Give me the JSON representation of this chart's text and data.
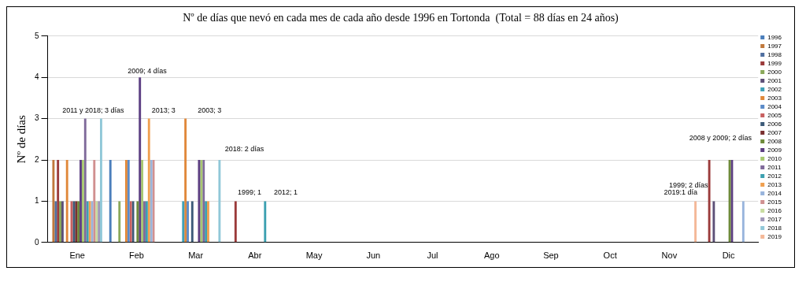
{
  "chart_data": {
    "type": "bar",
    "title": "Nº de días que nevó en cada mes de cada año desde 1996 en Tortonda  (Total = 88 días en 24 años)",
    "ylabel": "Nº de días",
    "categories": [
      "Ene",
      "Feb",
      "Mar",
      "Abr",
      "May",
      "Jun",
      "Jul",
      "Ago",
      "Sep",
      "Oct",
      "Nov",
      "Dic"
    ],
    "ylim": [
      0,
      5
    ],
    "yticks": [
      0,
      1,
      2,
      3,
      4,
      5
    ],
    "grid": "y",
    "legend": "right",
    "series": [
      {
        "name": "1996",
        "color": "#4a7ebb",
        "values": [
          0,
          2,
          0,
          0,
          0,
          0,
          0,
          0,
          0,
          0,
          0,
          0
        ]
      },
      {
        "name": "1997",
        "color": "#c0783c",
        "values": [
          2,
          0,
          0,
          0,
          0,
          0,
          0,
          0,
          0,
          0,
          0,
          0
        ]
      },
      {
        "name": "1998",
        "color": "#4f6fa0",
        "values": [
          1,
          0,
          0,
          0,
          0,
          0,
          0,
          0,
          0,
          0,
          0,
          0
        ]
      },
      {
        "name": "1999",
        "color": "#9b3b3b",
        "values": [
          2,
          0,
          0,
          1,
          0,
          0,
          0,
          0,
          0,
          0,
          0,
          2
        ]
      },
      {
        "name": "2000",
        "color": "#8aa85a",
        "values": [
          1,
          1,
          0,
          0,
          0,
          0,
          0,
          0,
          0,
          0,
          0,
          0
        ]
      },
      {
        "name": "2001",
        "color": "#5d5077",
        "values": [
          1,
          0,
          0,
          0,
          0,
          0,
          0,
          0,
          0,
          0,
          0,
          1
        ]
      },
      {
        "name": "2002",
        "color": "#3fa0b8",
        "values": [
          0,
          0,
          1,
          0,
          0,
          0,
          0,
          0,
          0,
          0,
          0,
          0
        ]
      },
      {
        "name": "2003",
        "color": "#e0883a",
        "values": [
          2,
          2,
          3,
          0,
          0,
          0,
          0,
          0,
          0,
          0,
          0,
          0
        ]
      },
      {
        "name": "2004",
        "color": "#5a8ac8",
        "values": [
          0,
          2,
          1,
          0,
          0,
          0,
          0,
          0,
          0,
          0,
          0,
          0
        ]
      },
      {
        "name": "2005",
        "color": "#c86060",
        "values": [
          1,
          1,
          0,
          0,
          0,
          0,
          0,
          0,
          0,
          0,
          0,
          0
        ]
      },
      {
        "name": "2006",
        "color": "#3c5a78",
        "values": [
          1,
          1,
          1,
          0,
          0,
          0,
          0,
          0,
          0,
          0,
          0,
          0
        ]
      },
      {
        "name": "2007",
        "color": "#7a3030",
        "values": [
          1,
          0,
          0,
          0,
          0,
          0,
          0,
          0,
          0,
          0,
          0,
          0
        ]
      },
      {
        "name": "2008",
        "color": "#6e8a3a",
        "values": [
          1,
          1,
          0,
          0,
          0,
          0,
          0,
          0,
          0,
          0,
          0,
          2
        ]
      },
      {
        "name": "2009",
        "color": "#5c3e82",
        "values": [
          2,
          4,
          2,
          0,
          0,
          0,
          0,
          0,
          0,
          0,
          0,
          2
        ]
      },
      {
        "name": "2010",
        "color": "#a8c870",
        "values": [
          2,
          2,
          2,
          0,
          0,
          0,
          0,
          0,
          0,
          0,
          0,
          0
        ]
      },
      {
        "name": "2011",
        "color": "#7f6a9a",
        "values": [
          3,
          1,
          2,
          0,
          0,
          0,
          0,
          0,
          0,
          0,
          0,
          0
        ]
      },
      {
        "name": "2012",
        "color": "#3ca0b0",
        "values": [
          1,
          1,
          1,
          1,
          0,
          0,
          0,
          0,
          0,
          0,
          0,
          0
        ]
      },
      {
        "name": "2013",
        "color": "#f0a050",
        "values": [
          1,
          3,
          1,
          0,
          0,
          0,
          0,
          0,
          0,
          0,
          0,
          0
        ]
      },
      {
        "name": "2014",
        "color": "#98b4dc",
        "values": [
          1,
          2,
          0,
          0,
          0,
          0,
          0,
          0,
          0,
          0,
          0,
          1
        ]
      },
      {
        "name": "2015",
        "color": "#d09090",
        "values": [
          2,
          2,
          0,
          0,
          0,
          0,
          0,
          0,
          0,
          0,
          0,
          0
        ]
      },
      {
        "name": "2016",
        "color": "#c8dca0",
        "values": [
          1,
          0,
          0,
          0,
          0,
          0,
          0,
          0,
          0,
          0,
          0,
          0
        ]
      },
      {
        "name": "2017",
        "color": "#a098b8",
        "values": [
          1,
          0,
          0,
          0,
          0,
          0,
          0,
          0,
          0,
          0,
          0,
          0
        ]
      },
      {
        "name": "2018",
        "color": "#90c8d8",
        "values": [
          3,
          0,
          2,
          0,
          0,
          0,
          0,
          0,
          0,
          0,
          0,
          0
        ]
      },
      {
        "name": "2019",
        "color": "#f4b898",
        "values": [
          0,
          0,
          0,
          0,
          0,
          0,
          0,
          0,
          0,
          0,
          1,
          0
        ]
      }
    ],
    "annotations": [
      "2011 y 2018; 3 días",
      "2009; 4 días",
      "2013; 3",
      "2003; 3",
      "2018: 2 días",
      "1999; 1",
      "2012; 1",
      "2019:1 día",
      "1999; 2 días",
      "2008 y 2009; 2 días"
    ]
  }
}
